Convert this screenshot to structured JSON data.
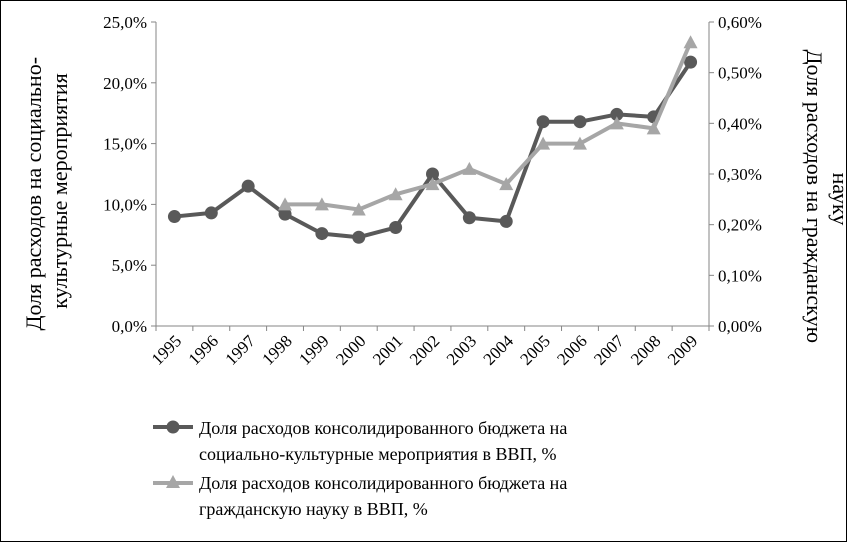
{
  "chart_data": {
    "type": "line",
    "categories": [
      "1995",
      "1996",
      "1997",
      "1998",
      "1999",
      "2000",
      "2001",
      "2002",
      "2003",
      "2004",
      "2005",
      "2006",
      "2007",
      "2008",
      "2009"
    ],
    "left_axis": {
      "label_lines": [
        "Доля расходов на социально-",
        "культурные мероприятия"
      ],
      "ticks": [
        "0,0%",
        "5,0%",
        "10,0%",
        "15,0%",
        "20,0%",
        "25,0%"
      ],
      "ylim": [
        0,
        25
      ]
    },
    "right_axis": {
      "label_lines": [
        "Доля расходов на гражданскую",
        "науку"
      ],
      "ticks": [
        "0,00%",
        "0,10%",
        "0,20%",
        "0,30%",
        "0,40%",
        "0,50%",
        "0,60%"
      ],
      "ylim": [
        0,
        0.6
      ]
    },
    "series": [
      {
        "name": "Доля расходов консолидированного бюджета на социально-культурные мероприятия в ВВП, %",
        "name_lines": [
          "Доля расходов консолидированного бюджета на",
          "социально-культурные мероприятия в ВВП, %"
        ],
        "axis": "left",
        "marker": "circle",
        "color": "#595959",
        "values": [
          9.0,
          9.3,
          11.5,
          9.2,
          7.6,
          7.3,
          8.1,
          12.5,
          8.9,
          8.6,
          16.8,
          16.8,
          17.4,
          17.2,
          21.7
        ]
      },
      {
        "name": "Доля расходов консолидированного бюджета на гражданскую науку в ВВП, %",
        "name_lines": [
          "Доля расходов консолидированного бюджета на",
          "гражданскую науку в ВВП, %"
        ],
        "axis": "right",
        "marker": "triangle",
        "color": "#a6a6a6",
        "values": [
          null,
          null,
          null,
          0.24,
          0.24,
          0.23,
          0.26,
          0.28,
          0.31,
          0.28,
          0.36,
          0.36,
          0.4,
          0.39,
          0.56
        ]
      }
    ],
    "grid": false,
    "legend": "bottom"
  }
}
